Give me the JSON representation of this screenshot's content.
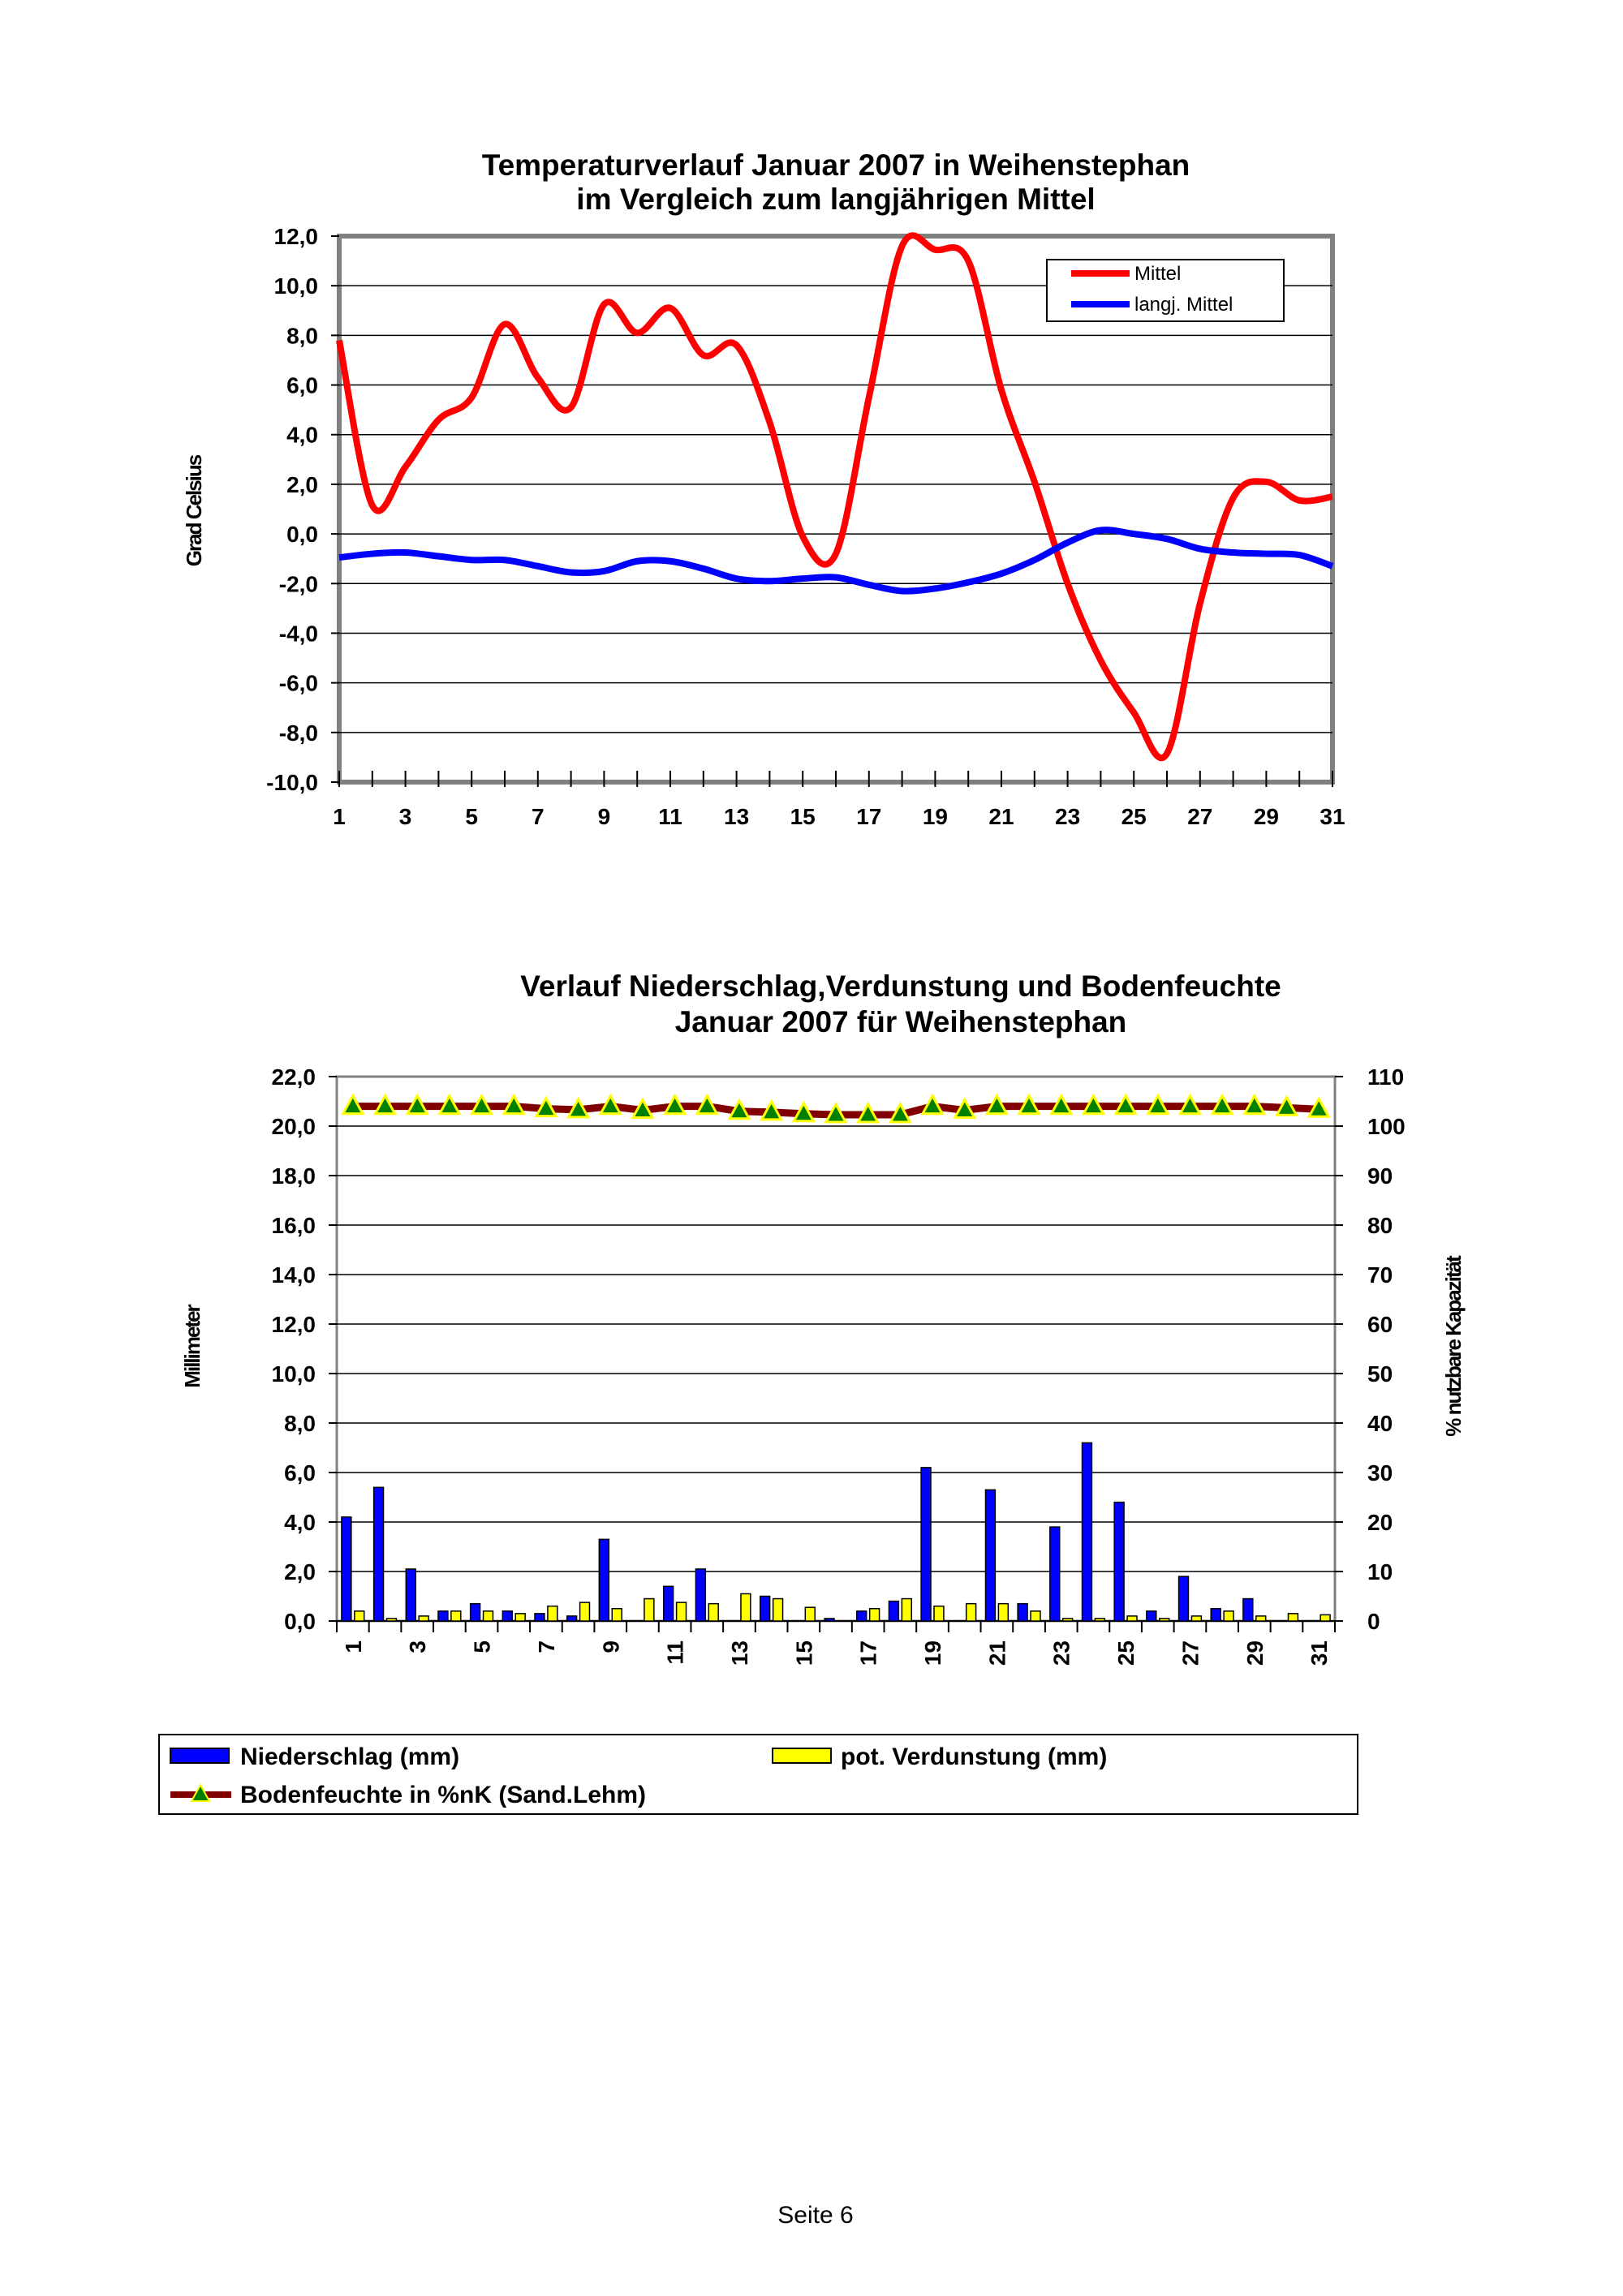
{
  "footer": "Seite 6",
  "chart_data": [
    {
      "type": "line",
      "title": [
        "Temperaturverlauf Januar 2007 in Weihenstephan",
        "im Vergleich zum langjährigen Mittel"
      ],
      "ylabel": "Grad Celsius",
      "xlabel": "",
      "ylim": [
        -10,
        12
      ],
      "yticks": [
        "12,0",
        "10,0",
        "8,0",
        "6,0",
        "4,0",
        "2,0",
        "0,0",
        "-2,0",
        "-4,0",
        "-6,0",
        "-8,0",
        "-10,0"
      ],
      "xticks": [
        "1",
        "3",
        "5",
        "7",
        "9",
        "11",
        "13",
        "15",
        "17",
        "19",
        "21",
        "23",
        "25",
        "27",
        "29",
        "31"
      ],
      "x": [
        1,
        2,
        3,
        4,
        5,
        6,
        7,
        8,
        9,
        10,
        11,
        12,
        13,
        14,
        15,
        16,
        17,
        18,
        19,
        20,
        21,
        22,
        23,
        24,
        25,
        26,
        27,
        28,
        29,
        30,
        31
      ],
      "grid": true,
      "legend_position": "top-right",
      "series": [
        {
          "name": "Mittel",
          "color": "#ff0000",
          "values": [
            7.8,
            1.15,
            2.7,
            4.6,
            5.5,
            8.45,
            6.3,
            5.1,
            9.25,
            8.1,
            9.1,
            7.2,
            7.6,
            4.5,
            -0.1,
            -0.8,
            5.5,
            11.6,
            11.45,
            11.0,
            5.8,
            2.1,
            -2.0,
            -5.1,
            -7.2,
            -8.85,
            -2.8,
            1.45,
            2.1,
            1.35,
            1.5
          ]
        },
        {
          "name": "langj. Mittel",
          "color": "#0000ff",
          "values": [
            -0.95,
            -0.8,
            -0.75,
            -0.9,
            -1.05,
            -1.05,
            -1.3,
            -1.55,
            -1.5,
            -1.1,
            -1.1,
            -1.4,
            -1.8,
            -1.9,
            -1.8,
            -1.75,
            -2.05,
            -2.3,
            -2.2,
            -1.95,
            -1.6,
            -1.05,
            -0.35,
            0.15,
            0.0,
            -0.2,
            -0.6,
            -0.75,
            -0.8,
            -0.85,
            -1.3
          ]
        }
      ]
    },
    {
      "type": "bar",
      "title": [
        "Verlauf Niederschlag,Verdunstung und Bodenfeuchte",
        "Januar 2007 für Weihenstephan"
      ],
      "ylabel": "Millimeter",
      "y2label": "% nutzbare Kapazität",
      "ylim": [
        0,
        22
      ],
      "y2lim": [
        0,
        110
      ],
      "yticks": [
        "22,0",
        "20,0",
        "18,0",
        "16,0",
        "14,0",
        "12,0",
        "10,0",
        "8,0",
        "6,0",
        "4,0",
        "2,0",
        "0,0"
      ],
      "y2ticks": [
        "110",
        "100",
        "90",
        "80",
        "70",
        "60",
        "50",
        "40",
        "30",
        "20",
        "10",
        "0"
      ],
      "xticks": [
        "1",
        "3",
        "5",
        "7",
        "9",
        "11",
        "13",
        "15",
        "17",
        "19",
        "21",
        "23",
        "25",
        "27",
        "29",
        "31"
      ],
      "x": [
        1,
        2,
        3,
        4,
        5,
        6,
        7,
        8,
        9,
        10,
        11,
        12,
        13,
        14,
        15,
        16,
        17,
        18,
        19,
        20,
        21,
        22,
        23,
        24,
        25,
        26,
        27,
        28,
        29,
        30,
        31
      ],
      "grid": true,
      "legend_position": "bottom",
      "series": [
        {
          "name": "Niederschlag (mm)",
          "color": "#0000ff",
          "axis": "left",
          "values": [
            4.2,
            5.4,
            2.1,
            0.4,
            0.7,
            0.4,
            0.3,
            0.2,
            3.3,
            0,
            1.4,
            2.1,
            0,
            1.0,
            0,
            0.1,
            0.4,
            0.8,
            6.2,
            0,
            5.3,
            0.7,
            3.8,
            7.2,
            4.8,
            0.4,
            1.8,
            0.5,
            0.9,
            0,
            0
          ]
        },
        {
          "name": "pot. Verdunstung (mm)",
          "color": "#ffff00",
          "axis": "left",
          "values": [
            0.4,
            0.1,
            0.2,
            0.4,
            0.4,
            0.3,
            0.6,
            0.75,
            0.5,
            0.9,
            0.75,
            0.7,
            1.1,
            0.9,
            0.55,
            0,
            0.5,
            0.9,
            0.6,
            0.7,
            0.7,
            0.4,
            0.1,
            0.1,
            0.2,
            0.1,
            0.2,
            0.4,
            0.2,
            0.3,
            0.25
          ]
        },
        {
          "name": "Bodenfeuchte in %nK (Sand.Lehm)",
          "color": "#800000",
          "marker_color": "#008000",
          "axis": "right",
          "type": "line",
          "values": [
            104,
            104,
            104,
            104,
            104,
            104,
            103.5,
            103.3,
            104,
            103.2,
            104,
            104,
            103,
            102.8,
            102.5,
            102.3,
            102.3,
            102.3,
            104,
            103.2,
            104,
            104,
            104,
            104,
            104,
            104,
            104,
            104,
            104,
            103.7,
            103.4
          ]
        }
      ]
    }
  ]
}
